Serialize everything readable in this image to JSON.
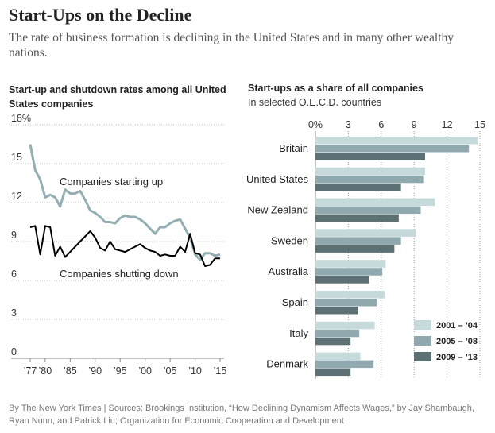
{
  "header": {
    "title": "Start-Ups on the Decline",
    "subtitle": "The rate of business formation is declining in the United States and in many other wealthy nations."
  },
  "footer": {
    "source": "By The New York Times | Sources: Brookings Institution, “How Declining Dynamism Affects Wages,” by Jay Shambaugh, Ryan Nunn, and Patrick Liu; Organization for Economic Cooperation and Development"
  },
  "colors": {
    "startup_line": "#94aeb3",
    "shutdown_line": "#000000",
    "bar_2001_04": "#c6d9db",
    "bar_2005_08": "#8fa9ae",
    "bar_2009_13": "#5d7175"
  },
  "chart_data": [
    {
      "type": "line",
      "title": "Start-up and shutdown rates among all United States companies",
      "y_unit": "%",
      "ylim": [
        0,
        18
      ],
      "y_ticks": [
        "18%",
        "15",
        "12",
        "9",
        "6",
        "3",
        "0"
      ],
      "x_ticks": [
        "’77",
        "’80",
        "’85",
        "’90",
        "’95",
        "’00",
        "’05",
        "’10",
        "’15"
      ],
      "grid": "horizontal dotted",
      "x": [
        1977,
        1978,
        1979,
        1980,
        1981,
        1982,
        1983,
        1984,
        1985,
        1986,
        1987,
        1988,
        1989,
        1990,
        1991,
        1992,
        1993,
        1994,
        1995,
        1996,
        1997,
        1998,
        1999,
        2000,
        2001,
        2002,
        2003,
        2004,
        2005,
        2006,
        2007,
        2008,
        2009,
        2010,
        2011,
        2012,
        2013,
        2014,
        2015
      ],
      "series": [
        {
          "name": "Companies starting up",
          "values": [
            16.5,
            14.5,
            13.8,
            12.4,
            12.6,
            12.4,
            11.7,
            13.0,
            12.7,
            12.7,
            12.9,
            12.2,
            11.4,
            11.2,
            10.9,
            10.5,
            10.5,
            10.4,
            10.8,
            11.0,
            10.9,
            10.9,
            10.7,
            10.4,
            10.0,
            9.6,
            10.1,
            10.1,
            10.4,
            10.6,
            10.7,
            10.0,
            9.3,
            8.0,
            7.6,
            8.1,
            8.1,
            7.9,
            8.0
          ]
        },
        {
          "name": "Companies shutting down",
          "values": [
            10.1,
            10.2,
            8.0,
            10.2,
            10.1,
            7.9,
            8.6,
            7.8,
            8.2,
            8.6,
            9.0,
            9.4,
            9.8,
            9.3,
            8.5,
            8.3,
            9.0,
            8.4,
            8.3,
            8.2,
            8.4,
            8.6,
            8.8,
            8.5,
            8.3,
            8.2,
            7.9,
            8.0,
            7.9,
            7.9,
            8.6,
            8.2,
            9.6,
            8.1,
            8.0,
            7.1,
            7.2,
            7.7,
            7.7
          ]
        }
      ]
    },
    {
      "type": "bar",
      "orientation": "horizontal",
      "title": "Start-ups as a share of all companies",
      "subtitle": "In selected O.E.C.D. countries",
      "x_unit": "%",
      "xlim": [
        0,
        15
      ],
      "x_ticks": [
        "0%",
        "3",
        "6",
        "9",
        "12",
        "15"
      ],
      "grid": "vertical dotted",
      "legend_position": "bottom-right",
      "categories": [
        "Britain",
        "United States",
        "New Zealand",
        "Sweden",
        "Australia",
        "Spain",
        "Italy",
        "Denmark"
      ],
      "series": [
        {
          "name": "2001 – ’04",
          "values": [
            14.8,
            10.0,
            10.9,
            9.2,
            6.4,
            6.3,
            5.4,
            4.1
          ]
        },
        {
          "name": "2005 – ’08",
          "values": [
            14.0,
            9.9,
            9.6,
            7.8,
            6.1,
            5.6,
            4.0,
            5.3
          ]
        },
        {
          "name": "2009 – ’13",
          "values": [
            10.0,
            7.8,
            7.6,
            7.2,
            4.9,
            3.9,
            3.2,
            3.2
          ]
        }
      ]
    }
  ]
}
